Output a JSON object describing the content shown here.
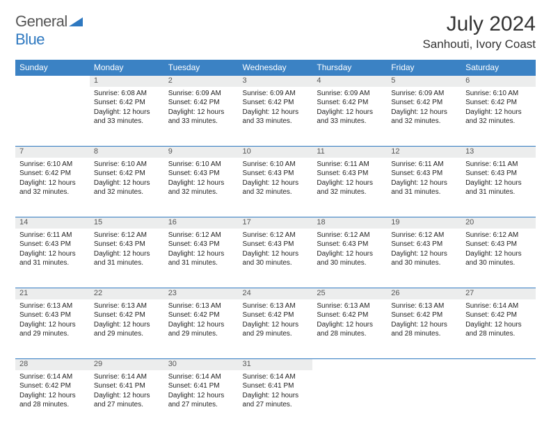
{
  "brand": {
    "part1": "General",
    "part2": "Blue"
  },
  "title": "July 2024",
  "location": "Sanhouti, Ivory Coast",
  "colors": {
    "header_bg": "#3b82c4",
    "daynum_bg": "#eceded",
    "rule": "#2e78c0",
    "text": "#222222",
    "title": "#333333"
  },
  "day_headers": [
    "Sunday",
    "Monday",
    "Tuesday",
    "Wednesday",
    "Thursday",
    "Friday",
    "Saturday"
  ],
  "weeks": [
    {
      "nums": [
        "",
        "1",
        "2",
        "3",
        "4",
        "5",
        "6"
      ],
      "cells": [
        null,
        {
          "sunrise": "Sunrise: 6:08 AM",
          "sunset": "Sunset: 6:42 PM",
          "day1": "Daylight: 12 hours",
          "day2": "and 33 minutes."
        },
        {
          "sunrise": "Sunrise: 6:09 AM",
          "sunset": "Sunset: 6:42 PM",
          "day1": "Daylight: 12 hours",
          "day2": "and 33 minutes."
        },
        {
          "sunrise": "Sunrise: 6:09 AM",
          "sunset": "Sunset: 6:42 PM",
          "day1": "Daylight: 12 hours",
          "day2": "and 33 minutes."
        },
        {
          "sunrise": "Sunrise: 6:09 AM",
          "sunset": "Sunset: 6:42 PM",
          "day1": "Daylight: 12 hours",
          "day2": "and 33 minutes."
        },
        {
          "sunrise": "Sunrise: 6:09 AM",
          "sunset": "Sunset: 6:42 PM",
          "day1": "Daylight: 12 hours",
          "day2": "and 32 minutes."
        },
        {
          "sunrise": "Sunrise: 6:10 AM",
          "sunset": "Sunset: 6:42 PM",
          "day1": "Daylight: 12 hours",
          "day2": "and 32 minutes."
        }
      ]
    },
    {
      "nums": [
        "7",
        "8",
        "9",
        "10",
        "11",
        "12",
        "13"
      ],
      "cells": [
        {
          "sunrise": "Sunrise: 6:10 AM",
          "sunset": "Sunset: 6:42 PM",
          "day1": "Daylight: 12 hours",
          "day2": "and 32 minutes."
        },
        {
          "sunrise": "Sunrise: 6:10 AM",
          "sunset": "Sunset: 6:42 PM",
          "day1": "Daylight: 12 hours",
          "day2": "and 32 minutes."
        },
        {
          "sunrise": "Sunrise: 6:10 AM",
          "sunset": "Sunset: 6:43 PM",
          "day1": "Daylight: 12 hours",
          "day2": "and 32 minutes."
        },
        {
          "sunrise": "Sunrise: 6:10 AM",
          "sunset": "Sunset: 6:43 PM",
          "day1": "Daylight: 12 hours",
          "day2": "and 32 minutes."
        },
        {
          "sunrise": "Sunrise: 6:11 AM",
          "sunset": "Sunset: 6:43 PM",
          "day1": "Daylight: 12 hours",
          "day2": "and 32 minutes."
        },
        {
          "sunrise": "Sunrise: 6:11 AM",
          "sunset": "Sunset: 6:43 PM",
          "day1": "Daylight: 12 hours",
          "day2": "and 31 minutes."
        },
        {
          "sunrise": "Sunrise: 6:11 AM",
          "sunset": "Sunset: 6:43 PM",
          "day1": "Daylight: 12 hours",
          "day2": "and 31 minutes."
        }
      ]
    },
    {
      "nums": [
        "14",
        "15",
        "16",
        "17",
        "18",
        "19",
        "20"
      ],
      "cells": [
        {
          "sunrise": "Sunrise: 6:11 AM",
          "sunset": "Sunset: 6:43 PM",
          "day1": "Daylight: 12 hours",
          "day2": "and 31 minutes."
        },
        {
          "sunrise": "Sunrise: 6:12 AM",
          "sunset": "Sunset: 6:43 PM",
          "day1": "Daylight: 12 hours",
          "day2": "and 31 minutes."
        },
        {
          "sunrise": "Sunrise: 6:12 AM",
          "sunset": "Sunset: 6:43 PM",
          "day1": "Daylight: 12 hours",
          "day2": "and 31 minutes."
        },
        {
          "sunrise": "Sunrise: 6:12 AM",
          "sunset": "Sunset: 6:43 PM",
          "day1": "Daylight: 12 hours",
          "day2": "and 30 minutes."
        },
        {
          "sunrise": "Sunrise: 6:12 AM",
          "sunset": "Sunset: 6:43 PM",
          "day1": "Daylight: 12 hours",
          "day2": "and 30 minutes."
        },
        {
          "sunrise": "Sunrise: 6:12 AM",
          "sunset": "Sunset: 6:43 PM",
          "day1": "Daylight: 12 hours",
          "day2": "and 30 minutes."
        },
        {
          "sunrise": "Sunrise: 6:12 AM",
          "sunset": "Sunset: 6:43 PM",
          "day1": "Daylight: 12 hours",
          "day2": "and 30 minutes."
        }
      ]
    },
    {
      "nums": [
        "21",
        "22",
        "23",
        "24",
        "25",
        "26",
        "27"
      ],
      "cells": [
        {
          "sunrise": "Sunrise: 6:13 AM",
          "sunset": "Sunset: 6:43 PM",
          "day1": "Daylight: 12 hours",
          "day2": "and 29 minutes."
        },
        {
          "sunrise": "Sunrise: 6:13 AM",
          "sunset": "Sunset: 6:42 PM",
          "day1": "Daylight: 12 hours",
          "day2": "and 29 minutes."
        },
        {
          "sunrise": "Sunrise: 6:13 AM",
          "sunset": "Sunset: 6:42 PM",
          "day1": "Daylight: 12 hours",
          "day2": "and 29 minutes."
        },
        {
          "sunrise": "Sunrise: 6:13 AM",
          "sunset": "Sunset: 6:42 PM",
          "day1": "Daylight: 12 hours",
          "day2": "and 29 minutes."
        },
        {
          "sunrise": "Sunrise: 6:13 AM",
          "sunset": "Sunset: 6:42 PM",
          "day1": "Daylight: 12 hours",
          "day2": "and 28 minutes."
        },
        {
          "sunrise": "Sunrise: 6:13 AM",
          "sunset": "Sunset: 6:42 PM",
          "day1": "Daylight: 12 hours",
          "day2": "and 28 minutes."
        },
        {
          "sunrise": "Sunrise: 6:14 AM",
          "sunset": "Sunset: 6:42 PM",
          "day1": "Daylight: 12 hours",
          "day2": "and 28 minutes."
        }
      ]
    },
    {
      "nums": [
        "28",
        "29",
        "30",
        "31",
        "",
        "",
        ""
      ],
      "cells": [
        {
          "sunrise": "Sunrise: 6:14 AM",
          "sunset": "Sunset: 6:42 PM",
          "day1": "Daylight: 12 hours",
          "day2": "and 28 minutes."
        },
        {
          "sunrise": "Sunrise: 6:14 AM",
          "sunset": "Sunset: 6:41 PM",
          "day1": "Daylight: 12 hours",
          "day2": "and 27 minutes."
        },
        {
          "sunrise": "Sunrise: 6:14 AM",
          "sunset": "Sunset: 6:41 PM",
          "day1": "Daylight: 12 hours",
          "day2": "and 27 minutes."
        },
        {
          "sunrise": "Sunrise: 6:14 AM",
          "sunset": "Sunset: 6:41 PM",
          "day1": "Daylight: 12 hours",
          "day2": "and 27 minutes."
        },
        null,
        null,
        null
      ]
    }
  ]
}
